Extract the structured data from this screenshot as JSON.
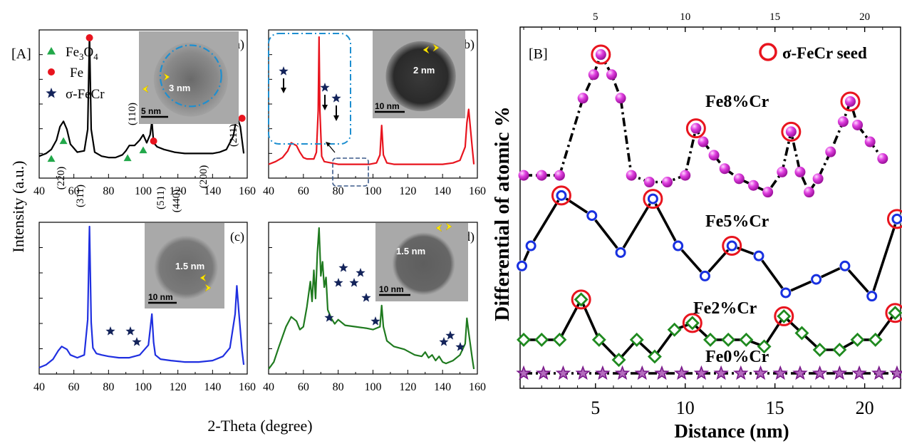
{
  "figure": {
    "panel_A_label": "[A]",
    "panel_B_label": "[B]",
    "left_ylabel": "Intensity (a.u.)",
    "left_xlabel": "2-Theta (degree)",
    "right_ylabel": "Differential of atomic %",
    "right_xlabel": "Distance (nm)"
  },
  "colors": {
    "fe3o4": "#22a84a",
    "fe": "#e8141e",
    "sigma": "#13235a",
    "inset_dash": "#1e8fd0",
    "pattern_a": "#000000",
    "pattern_b": "#e8141e",
    "pattern_c": "#1f2fe0",
    "pattern_d": "#1f7a1f",
    "series_fe8": "#e040e0",
    "series_fe5": "#1830e0",
    "series_fe2": "#1f8a1f",
    "series_fe0": "#7a1a8a",
    "seed_ring": "#e8141e"
  },
  "chart_data": [
    {
      "type": "line",
      "panel": "a)",
      "color_key": "pattern_a",
      "xlim": [
        40,
        160
      ],
      "x_ticks": [
        40,
        60,
        80,
        100,
        120,
        140,
        160
      ],
      "x": [
        40,
        44,
        47,
        50,
        52,
        54,
        56,
        58,
        62,
        66,
        68,
        69,
        70,
        72,
        76,
        80,
        84,
        88,
        90,
        92,
        95,
        98,
        100,
        102,
        104,
        105,
        106,
        108,
        112,
        118,
        124,
        130,
        136,
        140,
        144,
        148,
        152,
        154,
        156,
        158
      ],
      "y": [
        0.1,
        0.12,
        0.15,
        0.22,
        0.32,
        0.36,
        0.3,
        0.19,
        0.13,
        0.14,
        0.3,
        1.0,
        0.3,
        0.13,
        0.1,
        0.09,
        0.09,
        0.11,
        0.14,
        0.18,
        0.18,
        0.22,
        0.26,
        0.2,
        0.26,
        0.36,
        0.2,
        0.17,
        0.15,
        0.13,
        0.12,
        0.12,
        0.12,
        0.12,
        0.13,
        0.15,
        0.25,
        0.4,
        0.32,
        0.12
      ],
      "legend": [
        {
          "text": "Fe3O4",
          "marker": "triangle",
          "color_key": "fe3o4"
        },
        {
          "text": "Fe",
          "marker": "circle",
          "color_key": "fe"
        },
        {
          "text": "σ-FeCr",
          "marker": "star",
          "color_key": "sigma"
        }
      ],
      "annotations": [
        {
          "text": "(220)",
          "x": 47
        },
        {
          "text": "(311)",
          "x": 54
        },
        {
          "text": "(110)",
          "x": 69
        },
        {
          "text": "(511)",
          "x": 90
        },
        {
          "text": "(440)",
          "x": 100
        },
        {
          "text": "(200)",
          "x": 105
        },
        {
          "text": "(211)",
          "x": 156
        }
      ],
      "inset_text": [
        "3 nm",
        "5 nm"
      ]
    },
    {
      "type": "line",
      "panel": "(b)",
      "color_key": "pattern_b",
      "xlim": [
        40,
        160
      ],
      "x_ticks": [
        40,
        60,
        80,
        100,
        120,
        140,
        160
      ],
      "x": [
        40,
        44,
        48,
        51,
        53,
        56,
        58,
        60,
        62,
        64,
        66,
        67.5,
        68.5,
        69,
        69.5,
        70.5,
        72,
        76,
        80,
        86,
        92,
        98,
        102,
        104,
        105,
        106,
        108,
        112,
        118,
        126,
        134,
        140,
        146,
        150,
        153,
        154,
        155,
        157,
        158
      ],
      "y": [
        0.05,
        0.07,
        0.1,
        0.15,
        0.21,
        0.19,
        0.14,
        0.1,
        0.09,
        0.09,
        0.09,
        0.14,
        0.45,
        1.0,
        0.45,
        0.11,
        0.07,
        0.06,
        0.05,
        0.05,
        0.05,
        0.05,
        0.06,
        0.12,
        0.34,
        0.12,
        0.06,
        0.05,
        0.05,
        0.05,
        0.05,
        0.05,
        0.06,
        0.08,
        0.18,
        0.36,
        0.46,
        0.18,
        0.05
      ],
      "inset_text": [
        "2 nm",
        "10 nm"
      ]
    },
    {
      "type": "line",
      "panel": "(c)",
      "color_key": "pattern_c",
      "xlim": [
        40,
        160
      ],
      "x_ticks": [
        40,
        60,
        80,
        100,
        120,
        140,
        160
      ],
      "x": [
        40,
        44,
        48,
        51,
        53,
        56,
        58,
        62,
        66,
        68,
        69,
        70,
        71,
        73,
        76,
        80,
        86,
        92,
        98,
        103,
        105,
        106,
        107,
        110,
        116,
        124,
        132,
        140,
        146,
        150,
        153,
        154,
        155,
        157,
        158
      ],
      "y": [
        0.0,
        0.02,
        0.06,
        0.12,
        0.15,
        0.13,
        0.09,
        0.07,
        0.09,
        0.34,
        1.0,
        0.32,
        0.14,
        0.1,
        0.09,
        0.08,
        0.07,
        0.07,
        0.09,
        0.16,
        0.38,
        0.18,
        0.09,
        0.06,
        0.05,
        0.04,
        0.04,
        0.05,
        0.08,
        0.14,
        0.38,
        0.58,
        0.42,
        0.12,
        0.02
      ],
      "inset_text": [
        "1.5 nm",
        "10 nm"
      ]
    },
    {
      "type": "line",
      "panel": "(d)",
      "color_key": "pattern_d",
      "xlim": [
        40,
        160
      ],
      "x_ticks": [
        40,
        60,
        80,
        100,
        120,
        140,
        160
      ],
      "x": [
        40,
        43,
        46,
        50,
        53,
        56,
        58,
        60,
        62,
        64,
        65,
        66,
        67,
        68,
        69,
        70,
        71,
        72,
        73,
        74,
        76,
        78,
        80,
        84,
        90,
        96,
        100,
        104,
        105,
        106,
        108,
        112,
        118,
        124,
        128,
        130,
        132,
        134,
        136,
        138,
        140,
        142,
        146,
        150,
        153,
        154,
        155,
        157,
        158
      ],
      "y": [
        0.0,
        0.05,
        0.16,
        0.3,
        0.37,
        0.34,
        0.28,
        0.3,
        0.44,
        0.62,
        0.48,
        0.7,
        0.5,
        0.82,
        1.0,
        0.66,
        0.76,
        0.58,
        0.65,
        0.42,
        0.36,
        0.32,
        0.35,
        0.31,
        0.3,
        0.29,
        0.28,
        0.3,
        0.45,
        0.3,
        0.2,
        0.16,
        0.14,
        0.1,
        0.09,
        0.12,
        0.08,
        0.1,
        0.06,
        0.09,
        0.05,
        0.04,
        0.06,
        0.1,
        0.18,
        0.36,
        0.26,
        0.08,
        0.0
      ],
      "inset_text": [
        "1.5 nm",
        "10 nm"
      ]
    },
    {
      "type": "line",
      "panel": "[B]",
      "xlabel": "Distance (nm)",
      "ylabel": "Differential of atomic %",
      "xlim": [
        0.8,
        22
      ],
      "x_ticks": [
        5,
        10,
        15,
        20
      ],
      "top_x_ticks": [
        5,
        10,
        15,
        20
      ],
      "ylim": [
        0,
        10
      ],
      "legend": [
        {
          "text": "σ-FeCr seed",
          "marker": "ring",
          "color_key": "seed_ring"
        }
      ],
      "series": [
        {
          "name": "Fe8%Cr",
          "marker": "sphere",
          "color_key": "series_fe8",
          "x": [
            1,
            2,
            3,
            4.3,
            4.9,
            5.3,
            5.9,
            6.4,
            7,
            8,
            9,
            10,
            10.6,
            11,
            11.6,
            12.2,
            13,
            13.8,
            14.6,
            15.4,
            15.9,
            16.4,
            16.9,
            17.4,
            18.1,
            18.8,
            19.2,
            19.6,
            20.3,
            21
          ],
          "y": [
            5.9,
            5.9,
            5.9,
            8.2,
            8.9,
            9.5,
            8.9,
            8.2,
            5.9,
            5.7,
            5.7,
            5.9,
            7.3,
            6.9,
            6.5,
            6.1,
            5.8,
            5.6,
            5.4,
            6.0,
            7.2,
            6.0,
            5.4,
            5.8,
            6.6,
            7.5,
            8.1,
            7.4,
            6.9,
            6.4
          ],
          "seeds": [
            5.3,
            10.6,
            15.9,
            19.2
          ]
        },
        {
          "name": "Fe5%Cr",
          "marker": "ring-blue",
          "color_key": "series_fe5",
          "x": [
            0.9,
            1.4,
            3.1,
            4.8,
            6.4,
            8.2,
            9.6,
            11.1,
            12.6,
            14.1,
            15.6,
            17.3,
            18.9,
            20.4,
            21.8
          ],
          "y": [
            3.2,
            3.8,
            5.3,
            4.7,
            3.6,
            5.2,
            3.8,
            2.9,
            3.8,
            3.5,
            2.4,
            2.8,
            3.2,
            2.3,
            4.6
          ],
          "seeds": [
            3.1,
            8.2,
            12.6,
            21.8
          ]
        },
        {
          "name": "Fe2%Cr",
          "marker": "diamond",
          "color_key": "series_fe2",
          "x": [
            1,
            2,
            3,
            4.2,
            5.2,
            6.3,
            7.3,
            8.3,
            9.4,
            10.4,
            11.4,
            12.4,
            13.4,
            14.4,
            15.5,
            16.5,
            17.5,
            18.6,
            19.6,
            20.6,
            21.7
          ],
          "y": [
            1.0,
            1.0,
            1.0,
            2.2,
            1.0,
            0.4,
            1.0,
            0.5,
            1.3,
            1.5,
            1.0,
            1.0,
            1.0,
            0.8,
            1.7,
            1.2,
            0.7,
            0.7,
            1.0,
            1.0,
            1.8
          ],
          "seeds": [
            4.2,
            10.4,
            15.5,
            21.7
          ]
        },
        {
          "name": "Fe0%Cr",
          "marker": "star",
          "color_key": "series_fe0",
          "x": [
            1,
            2.1,
            3.2,
            4.3,
            5.4,
            6.5,
            7.6,
            8.7,
            9.8,
            10.9,
            12,
            13.1,
            14.2,
            15.3,
            16.4,
            17.5,
            18.6,
            19.7,
            20.8,
            21.8
          ],
          "y": [
            0,
            0,
            0,
            0,
            0,
            0,
            0,
            0,
            0,
            0,
            0,
            0,
            0,
            0,
            0,
            0,
            0,
            0,
            0,
            0
          ],
          "seeds": []
        }
      ]
    }
  ]
}
